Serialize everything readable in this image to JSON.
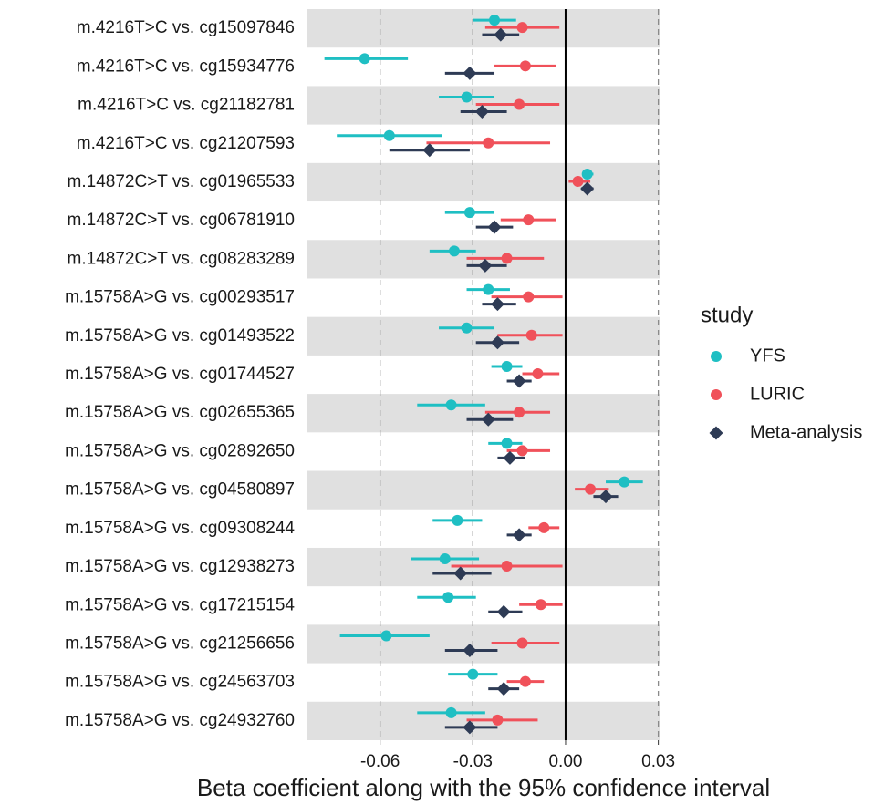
{
  "chart_data": {
    "type": "forest",
    "x_label": "Beta coefficient along with the 95% confidence interval",
    "legend_title": "study",
    "xlim": [
      -0.0835,
      0.0307
    ],
    "xticks": [
      -0.06,
      -0.03,
      {
        "value": 0,
        "label": "0.00"
      },
      0.03
    ],
    "reference_line": 0,
    "grid": true,
    "categories": [
      "m.4216T>C vs. cg15097846",
      "m.4216T>C vs. cg15934776",
      "m.4216T>C vs. cg21182781",
      "m.4216T>C vs. cg21207593",
      "m.14872C>T vs. cg01965533",
      "m.14872C>T vs. cg06781910",
      "m.14872C>T vs. cg08283289",
      "m.15758A>G vs. cg00293517",
      "m.15758A>G vs. cg01493522",
      "m.15758A>G vs. cg01744527",
      "m.15758A>G vs. cg02655365",
      "m.15758A>G vs. cg02892650",
      "m.15758A>G vs. cg04580897",
      "m.15758A>G vs. cg09308244",
      "m.15758A>G vs. cg12938273",
      "m.15758A>G vs. cg17215154",
      "m.15758A>G vs. cg21256656",
      "m.15758A>G vs. cg24563703",
      "m.15758A>G vs. cg24932760"
    ],
    "series": [
      {
        "name": "YFS",
        "color": "#1fbfc3",
        "marker": "circle",
        "values": [
          -0.023,
          -0.065,
          -0.032,
          -0.057,
          0.007,
          -0.031,
          -0.036,
          -0.025,
          -0.032,
          -0.019,
          -0.037,
          -0.019,
          0.019,
          -0.035,
          -0.039,
          -0.038,
          -0.058,
          -0.03,
          -0.037
        ],
        "lower": [
          -0.03,
          -0.078,
          -0.041,
          -0.074,
          0.006,
          -0.039,
          -0.044,
          -0.032,
          -0.041,
          -0.024,
          -0.048,
          -0.025,
          0.013,
          -0.043,
          -0.05,
          -0.048,
          -0.073,
          -0.038,
          -0.048
        ],
        "upper": [
          -0.016,
          -0.051,
          -0.023,
          -0.04,
          0.009,
          -0.023,
          -0.029,
          -0.018,
          -0.023,
          -0.014,
          -0.026,
          -0.014,
          0.025,
          -0.027,
          -0.028,
          -0.029,
          -0.044,
          -0.022,
          -0.026
        ]
      },
      {
        "name": "LURIC",
        "color": "#f0515a",
        "marker": "circle",
        "values": [
          -0.014,
          -0.013,
          -0.015,
          -0.025,
          0.004,
          -0.012,
          -0.019,
          -0.012,
          -0.011,
          -0.009,
          -0.015,
          -0.014,
          0.008,
          -0.007,
          -0.019,
          -0.008,
          -0.014,
          -0.013,
          -0.022
        ],
        "lower": [
          -0.026,
          -0.023,
          -0.029,
          -0.045,
          0.001,
          -0.021,
          -0.032,
          -0.024,
          -0.022,
          -0.014,
          -0.026,
          -0.019,
          0.003,
          -0.012,
          -0.037,
          -0.015,
          -0.024,
          -0.019,
          -0.032
        ],
        "upper": [
          -0.002,
          -0.003,
          -0.002,
          -0.005,
          0.008,
          -0.003,
          -0.007,
          -0.001,
          -0.001,
          -0.002,
          -0.005,
          -0.005,
          0.014,
          -0.002,
          -0.001,
          -0.001,
          -0.002,
          -0.007,
          -0.009
        ]
      },
      {
        "name": "Meta-analysis",
        "color": "#2e3b55",
        "marker": "diamond",
        "values": [
          -0.021,
          -0.031,
          -0.027,
          -0.044,
          0.007,
          -0.023,
          -0.026,
          -0.022,
          -0.022,
          -0.015,
          -0.025,
          -0.018,
          0.013,
          -0.015,
          -0.034,
          -0.02,
          -0.031,
          -0.02,
          -0.031
        ],
        "lower": [
          -0.027,
          -0.039,
          -0.034,
          -0.057,
          0.005,
          -0.029,
          -0.032,
          -0.027,
          -0.029,
          -0.019,
          -0.032,
          -0.022,
          0.009,
          -0.019,
          -0.043,
          -0.025,
          -0.039,
          -0.025,
          -0.039
        ],
        "upper": [
          -0.015,
          -0.023,
          -0.019,
          -0.031,
          0.009,
          -0.017,
          -0.019,
          -0.016,
          -0.015,
          -0.011,
          -0.017,
          -0.013,
          0.017,
          -0.011,
          -0.024,
          -0.014,
          -0.022,
          -0.015,
          -0.022
        ]
      }
    ]
  }
}
